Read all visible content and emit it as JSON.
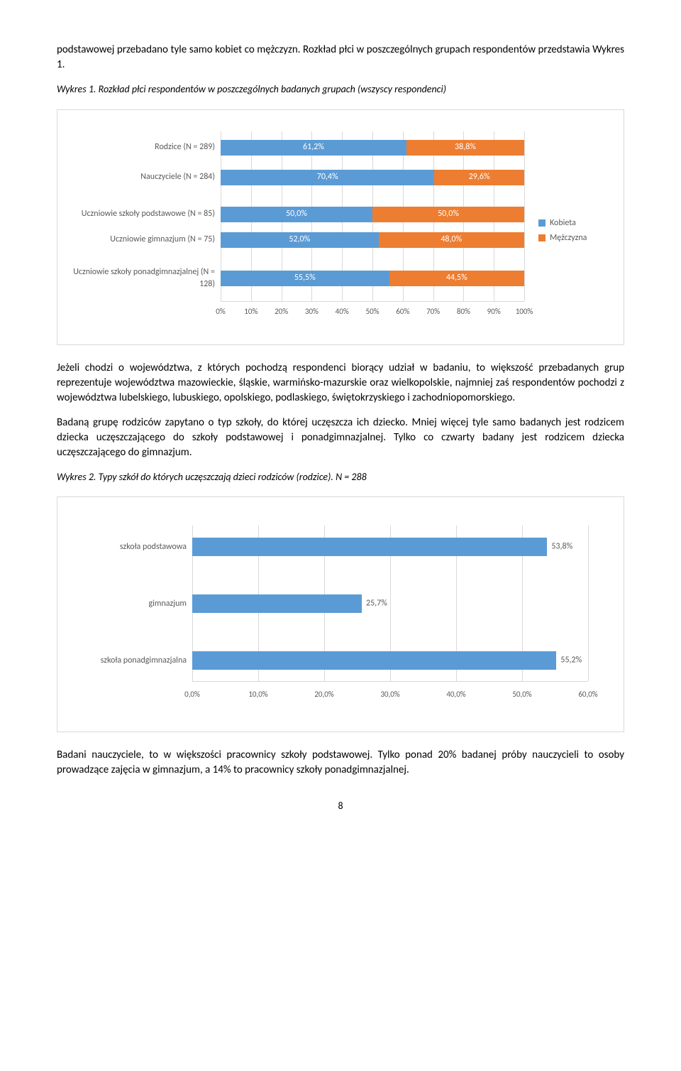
{
  "colors": {
    "series_a": "#5b9bd5",
    "series_b": "#ed7d31",
    "grid": "#d9d9d9",
    "axis_text": "#595959"
  },
  "para1": "podstawowej przebadano tyle samo kobiet co mężczyzn. Rozkład płci w poszczególnych grupach respondentów przedstawia Wykres 1.",
  "chart1": {
    "caption": "Wykres 1. Rozkład płci respondentów w poszczególnych badanych grupach (wszyscy respondenci)",
    "xmax": 100,
    "xticks": [
      "0%",
      "10%",
      "20%",
      "30%",
      "40%",
      "50%",
      "60%",
      "70%",
      "80%",
      "90%",
      "100%"
    ],
    "legend": {
      "a": "Kobieta",
      "b": "Mężczyzna"
    },
    "rows": [
      {
        "label": "Rodzice (N = 289)",
        "a": 61.2,
        "b": 38.8,
        "a_text": "61,2%",
        "b_text": "38,8%"
      },
      {
        "label": "Nauczyciele (N = 284)",
        "a": 70.4,
        "b": 29.6,
        "a_text": "70,4%",
        "b_text": "29,6%"
      },
      {
        "label": "Uczniowie szkoły podstawowe (N = 85)",
        "a": 50.0,
        "b": 50.0,
        "a_text": "50,0%",
        "b_text": "50,0%"
      },
      {
        "label": "Uczniowie gimnazjum (N = 75)",
        "a": 52.0,
        "b": 48.0,
        "a_text": "52,0%",
        "b_text": "48,0%"
      },
      {
        "label": "Uczniowie szkoły ponadgimnazjalnej (N = 128)",
        "a": 55.5,
        "b": 44.5,
        "a_text": "55,5%",
        "b_text": "44,5%"
      }
    ]
  },
  "para2": "Jeżeli chodzi o województwa, z których pochodzą respondenci biorący udział w badaniu, to większość przebadanych grup reprezentuje województwa mazowieckie, śląskie, warmińsko-mazurskie oraz wielkopolskie, najmniej zaś respondentów pochodzi z województwa lubelskiego, lubuskiego, opolskiego, podlaskiego, świętokrzyskiego i zachodniopomorskiego.",
  "para3": "Badaną grupę rodziców zapytano o typ szkoły, do której uczęszcza ich dziecko. Mniej więcej tyle samo badanych jest rodzicem dziecka uczęszczającego do szkoły podstawowej i ponadgimnazjalnej. Tylko co czwarty badany jest rodzicem dziecka uczęszczającego do gimnazjum.",
  "chart2": {
    "caption": "Wykres 2. Typy szkół do których uczęszczają dzieci rodziców (rodzice). N = 288",
    "xmax": 60,
    "xticks": [
      "0,0%",
      "10,0%",
      "20,0%",
      "30,0%",
      "40,0%",
      "50,0%",
      "60,0%"
    ],
    "rows": [
      {
        "label": "szkoła podstawowa",
        "v": 53.8,
        "v_text": "53,8%"
      },
      {
        "label": "gimnazjum",
        "v": 25.7,
        "v_text": "25,7%"
      },
      {
        "label": "szkoła ponadgimnazjalna",
        "v": 55.2,
        "v_text": "55,2%"
      }
    ]
  },
  "para4": "Badani nauczyciele, to w większości pracownicy szkoły podstawowej. Tylko ponad 20% badanej próby nauczycieli to osoby prowadzące zajęcia w gimnazjum, a 14% to pracownicy szkoły ponadgimnazjalnej.",
  "page_number": "8"
}
